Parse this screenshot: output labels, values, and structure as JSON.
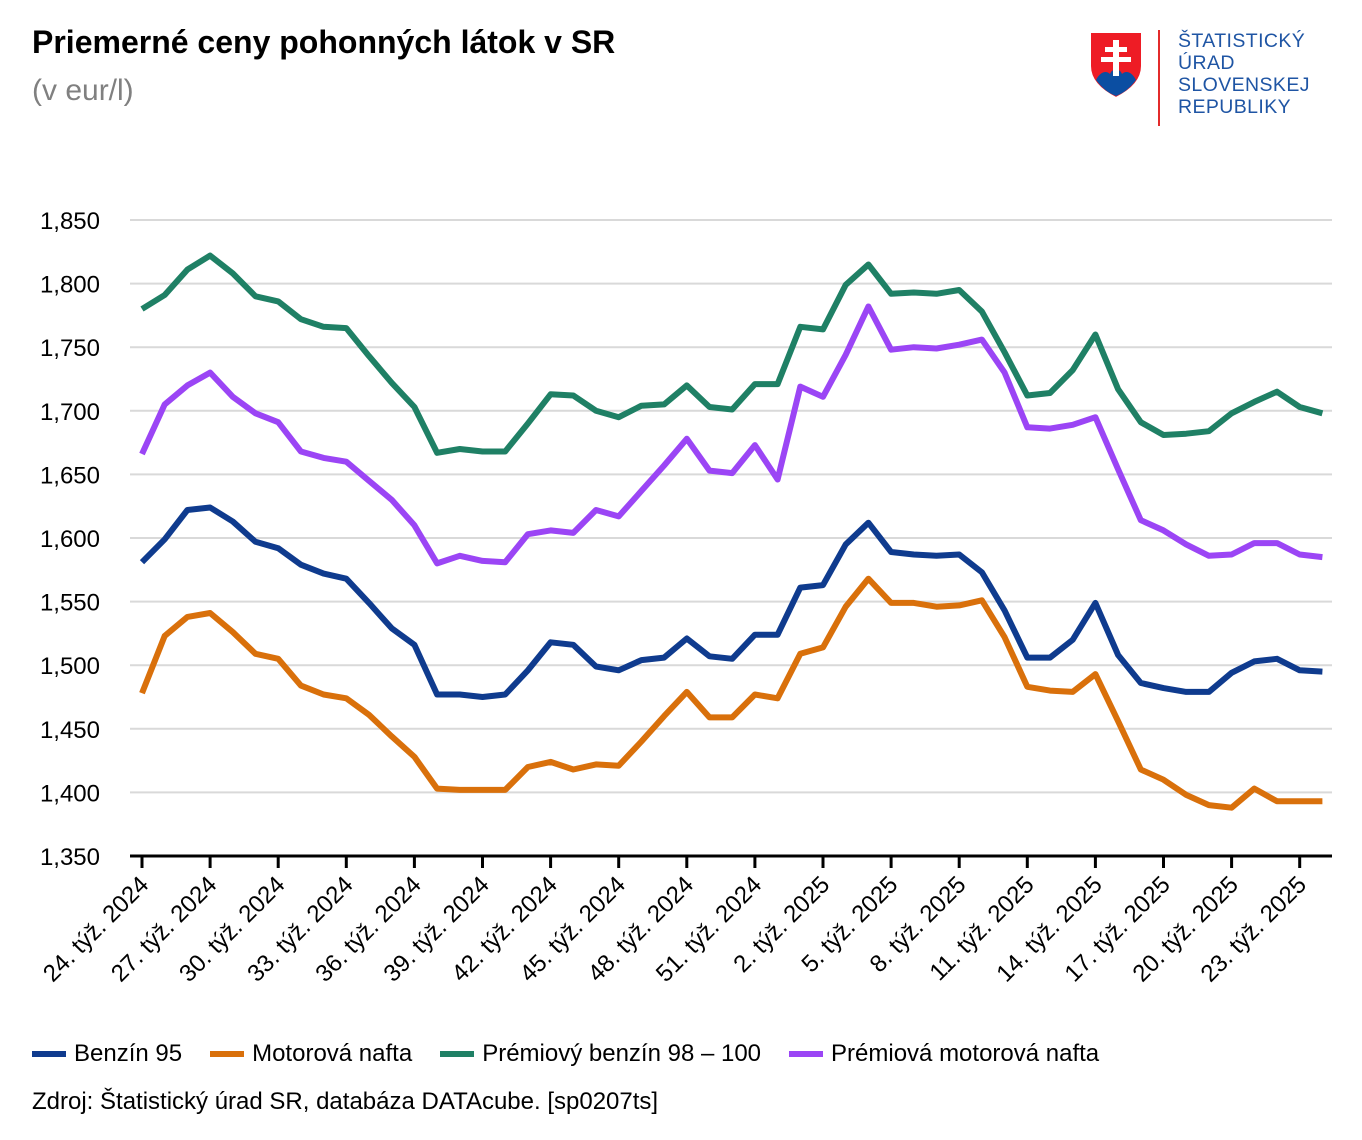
{
  "header": {
    "title": "Priemerné ceny pohonných látok v SR",
    "subtitle": "(v eur/l)"
  },
  "logo": {
    "lines": [
      "ŠTATISTICKÝ",
      "ÚRAD",
      "SLOVENSKEJ",
      "REPUBLIKY"
    ]
  },
  "chart_data": {
    "type": "line",
    "title": "Priemerné ceny pohonných látok v SR",
    "ylabel": "(v eur/l)",
    "ylim": [
      1.35,
      1.85
    ],
    "yticks": [
      "1,350",
      "1,400",
      "1,450",
      "1,500",
      "1,550",
      "1,600",
      "1,650",
      "1,700",
      "1,750",
      "1,800",
      "1,850"
    ],
    "ytick_values": [
      1.35,
      1.4,
      1.45,
      1.5,
      1.55,
      1.6,
      1.65,
      1.7,
      1.75,
      1.8,
      1.85
    ],
    "grid": true,
    "legend_position": "bottom",
    "categories_count": 53,
    "xtick_labels": [
      "24. týž. 2024",
      "27. týž. 2024",
      "30. týž. 2024",
      "33. týž. 2024",
      "36. týž. 2024",
      "39. týž. 2024",
      "42. týž. 2024",
      "45. týž. 2024",
      "48. týž. 2024",
      "51. týž. 2024",
      "2. týž. 2025",
      "5. týž. 2025",
      "8. týž. 2025",
      "11. týž. 2025",
      "14. týž. 2025",
      "17. týž. 2025",
      "20. týž. 2025",
      "23. týž. 2025"
    ],
    "series": [
      {
        "name": "Benzín 95",
        "color": "#0f3b8e",
        "values": [
          1.581,
          1.599,
          1.622,
          1.624,
          1.613,
          1.597,
          1.592,
          1.579,
          1.572,
          1.568,
          1.549,
          1.529,
          1.516,
          1.477,
          1.477,
          1.475,
          1.477,
          1.496,
          1.518,
          1.516,
          1.499,
          1.496,
          1.504,
          1.506,
          1.521,
          1.507,
          1.505,
          1.524,
          1.524,
          1.561,
          1.563,
          1.595,
          1.612,
          1.589,
          1.587,
          1.586,
          1.587,
          1.573,
          1.543,
          1.506,
          1.506,
          1.52,
          1.549,
          1.508,
          1.486,
          1.482,
          1.479,
          1.479,
          1.494,
          1.503,
          1.505,
          1.496,
          1.495
        ]
      },
      {
        "name": "Motorová nafta",
        "color": "#d9700b",
        "values": [
          1.478,
          1.523,
          1.538,
          1.541,
          1.526,
          1.509,
          1.505,
          1.484,
          1.477,
          1.474,
          1.461,
          1.444,
          1.428,
          1.403,
          1.402,
          1.402,
          1.402,
          1.42,
          1.424,
          1.418,
          1.422,
          1.421,
          1.44,
          1.46,
          1.479,
          1.459,
          1.459,
          1.477,
          1.474,
          1.509,
          1.514,
          1.546,
          1.568,
          1.549,
          1.549,
          1.546,
          1.547,
          1.551,
          1.522,
          1.483,
          1.48,
          1.479,
          1.493,
          1.456,
          1.418,
          1.41,
          1.398,
          1.39,
          1.388,
          1.403,
          1.393,
          1.393,
          1.393
        ]
      },
      {
        "name": "Prémiový benzín 98 – 100",
        "color": "#1f8065",
        "values": [
          1.78,
          1.791,
          1.811,
          1.822,
          1.808,
          1.79,
          1.786,
          1.772,
          1.766,
          1.765,
          1.743,
          1.722,
          1.703,
          1.667,
          1.67,
          1.668,
          1.668,
          1.69,
          1.713,
          1.712,
          1.7,
          1.695,
          1.704,
          1.705,
          1.72,
          1.703,
          1.701,
          1.721,
          1.721,
          1.766,
          1.764,
          1.799,
          1.815,
          1.792,
          1.793,
          1.792,
          1.795,
          1.778,
          1.746,
          1.712,
          1.714,
          1.732,
          1.76,
          1.717,
          1.691,
          1.681,
          1.682,
          1.684,
          1.698,
          1.707,
          1.715,
          1.703,
          1.698
        ]
      },
      {
        "name": "Prémiová motorová nafta",
        "color": "#9b45f5",
        "values": [
          1.666,
          1.705,
          1.72,
          1.73,
          1.711,
          1.698,
          1.691,
          1.668,
          1.663,
          1.66,
          1.645,
          1.63,
          1.61,
          1.58,
          1.586,
          1.582,
          1.581,
          1.603,
          1.606,
          1.604,
          1.622,
          1.617,
          1.637,
          1.657,
          1.678,
          1.653,
          1.651,
          1.673,
          1.646,
          1.719,
          1.711,
          1.744,
          1.782,
          1.748,
          1.75,
          1.749,
          1.752,
          1.756,
          1.73,
          1.687,
          1.686,
          1.689,
          1.695,
          1.654,
          1.614,
          1.606,
          1.595,
          1.586,
          1.587,
          1.596,
          1.596,
          1.587,
          1.585
        ]
      }
    ]
  },
  "source": "Zdroj: Štatistický úrad SR, databáza DATAcube. [sp0207ts]"
}
